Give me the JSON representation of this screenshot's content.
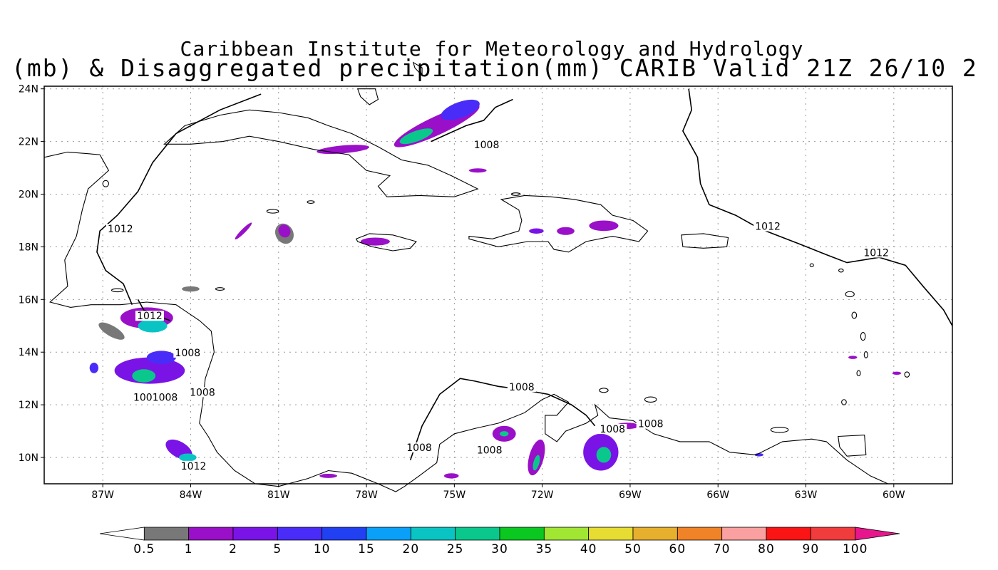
{
  "title_line1": "Caribbean Institute for Meteorology and Hydrology",
  "title_line2": "(mb) & Disaggregated precipitation(mm) CARIB Valid 21Z 26/10 2",
  "lat_labels": [
    "24N",
    "22N",
    "20N",
    "18N",
    "16N",
    "14N",
    "12N",
    "10N"
  ],
  "lon_labels": [
    "87W",
    "84W",
    "81W",
    "78W",
    "75W",
    "72W",
    "69W",
    "66W",
    "63W",
    "60W"
  ],
  "isobar_labels": [
    {
      "text": "1008",
      "lon": -73.9,
      "lat": 21.8
    },
    {
      "text": "1012",
      "lon": -86.4,
      "lat": 18.6
    },
    {
      "text": "1012",
      "lon": -64.3,
      "lat": 18.7
    },
    {
      "text": "1012",
      "lon": -60.6,
      "lat": 17.7
    },
    {
      "text": "1012",
      "lon": -85.4,
      "lat": 15.3
    },
    {
      "text": "1008",
      "lon": -84.1,
      "lat": 13.9
    },
    {
      "text": "1008",
      "lon": -83.6,
      "lat": 12.4
    },
    {
      "text": "1001008",
      "lon": -85.2,
      "lat": 12.2
    },
    {
      "text": "1008",
      "lon": -72.7,
      "lat": 12.6
    },
    {
      "text": "1008",
      "lon": -76.2,
      "lat": 10.3
    },
    {
      "text": "1008",
      "lon": -73.8,
      "lat": 10.2
    },
    {
      "text": "1008",
      "lon": -69.6,
      "lat": 11.0
    },
    {
      "text": "1008",
      "lon": -68.3,
      "lat": 11.2
    },
    {
      "text": "1012",
      "lon": -83.9,
      "lat": 9.6
    }
  ],
  "colorbar": {
    "labels": [
      "0.5",
      "1",
      "2",
      "5",
      "10",
      "15",
      "20",
      "25",
      "30",
      "35",
      "40",
      "50",
      "60",
      "70",
      "80",
      "90",
      "100"
    ],
    "colors": [
      "#ffffff",
      "#787878",
      "#9a10c8",
      "#7a14e6",
      "#4a2cf8",
      "#2040f2",
      "#0aa0f8",
      "#0ac4c4",
      "#0ac88c",
      "#0ac820",
      "#a0e632",
      "#e6dc32",
      "#e6af2d",
      "#f08228",
      "#faa0a0",
      "#fa1414",
      "#f03c3c",
      "#e8168c"
    ]
  },
  "precip_areas": [
    {
      "lon": -75.6,
      "lat": 22.6,
      "rx": 1.6,
      "ry": 0.35,
      "rot": -25,
      "color": "#9a10c8"
    },
    {
      "lon": -74.8,
      "lat": 23.2,
      "rx": 0.7,
      "ry": 0.3,
      "rot": -20,
      "color": "#4a2cf8"
    },
    {
      "lon": -76.3,
      "lat": 22.2,
      "rx": 0.6,
      "ry": 0.2,
      "rot": -20,
      "color": "#0ac88c"
    },
    {
      "lon": -78.8,
      "lat": 21.7,
      "rx": 0.9,
      "ry": 0.15,
      "rot": -5,
      "color": "#9a10c8"
    },
    {
      "lon": -80.8,
      "lat": 18.5,
      "rx": 0.3,
      "ry": 0.4,
      "rot": -30,
      "color": "#787878"
    },
    {
      "lon": -80.8,
      "lat": 18.6,
      "rx": 0.2,
      "ry": 0.25,
      "rot": -30,
      "color": "#9a10c8"
    },
    {
      "lon": -84.0,
      "lat": 16.4,
      "rx": 0.3,
      "ry": 0.1,
      "rot": 0,
      "color": "#787878"
    },
    {
      "lon": -85.5,
      "lat": 15.3,
      "rx": 0.9,
      "ry": 0.4,
      "rot": 0,
      "color": "#9a10c8"
    },
    {
      "lon": -85.3,
      "lat": 15.0,
      "rx": 0.5,
      "ry": 0.25,
      "rot": 0,
      "color": "#0ac4c4"
    },
    {
      "lon": -86.7,
      "lat": 14.8,
      "rx": 0.5,
      "ry": 0.2,
      "rot": 30,
      "color": "#787878"
    },
    {
      "lon": -85.4,
      "lat": 13.3,
      "rx": 1.2,
      "ry": 0.5,
      "rot": 0,
      "color": "#7a14e6"
    },
    {
      "lon": -85.6,
      "lat": 13.1,
      "rx": 0.4,
      "ry": 0.25,
      "rot": 0,
      "color": "#0ac88c"
    },
    {
      "lon": -85.0,
      "lat": 13.8,
      "rx": 0.5,
      "ry": 0.25,
      "rot": 0,
      "color": "#4a2cf8"
    },
    {
      "lon": -87.3,
      "lat": 13.4,
      "rx": 0.15,
      "ry": 0.2,
      "rot": 0,
      "color": "#4a2cf8"
    },
    {
      "lon": -84.4,
      "lat": 10.3,
      "rx": 0.5,
      "ry": 0.3,
      "rot": 30,
      "color": "#7a14e6"
    },
    {
      "lon": -84.1,
      "lat": 10.0,
      "rx": 0.3,
      "ry": 0.15,
      "rot": 0,
      "color": "#0ac4c4"
    },
    {
      "lon": -77.7,
      "lat": 18.2,
      "rx": 0.5,
      "ry": 0.15,
      "rot": 0,
      "color": "#9a10c8"
    },
    {
      "lon": -69.9,
      "lat": 18.8,
      "rx": 0.5,
      "ry": 0.2,
      "rot": 0,
      "color": "#9a10c8"
    },
    {
      "lon": -71.2,
      "lat": 18.6,
      "rx": 0.3,
      "ry": 0.15,
      "rot": 0,
      "color": "#9a10c8"
    },
    {
      "lon": -72.2,
      "lat": 18.6,
      "rx": 0.25,
      "ry": 0.1,
      "rot": 0,
      "color": "#7a14e6"
    },
    {
      "lon": -73.3,
      "lat": 10.9,
      "rx": 0.4,
      "ry": 0.3,
      "rot": 0,
      "color": "#9a10c8"
    },
    {
      "lon": -73.3,
      "lat": 10.9,
      "rx": 0.15,
      "ry": 0.1,
      "rot": 0,
      "color": "#0ac88c"
    },
    {
      "lon": -72.2,
      "lat": 10.0,
      "rx": 0.25,
      "ry": 0.7,
      "rot": 15,
      "color": "#9a10c8"
    },
    {
      "lon": -72.2,
      "lat": 9.8,
      "rx": 0.1,
      "ry": 0.3,
      "rot": 15,
      "color": "#0ac88c"
    },
    {
      "lon": -70.0,
      "lat": 10.2,
      "rx": 0.6,
      "ry": 0.7,
      "rot": 0,
      "color": "#7a14e6"
    },
    {
      "lon": -69.9,
      "lat": 10.1,
      "rx": 0.25,
      "ry": 0.3,
      "rot": 0,
      "color": "#0ac88c"
    },
    {
      "lon": -69.1,
      "lat": 11.2,
      "rx": 0.4,
      "ry": 0.12,
      "rot": 0,
      "color": "#9a10c8"
    },
    {
      "lon": -75.1,
      "lat": 9.3,
      "rx": 0.25,
      "ry": 0.1,
      "rot": 0,
      "color": "#9a10c8"
    },
    {
      "lon": -79.3,
      "lat": 9.3,
      "rx": 0.3,
      "ry": 0.08,
      "rot": 0,
      "color": "#9a10c8"
    },
    {
      "lon": -74.2,
      "lat": 20.9,
      "rx": 0.3,
      "ry": 0.08,
      "rot": 0,
      "color": "#9a10c8"
    },
    {
      "lon": -61.4,
      "lat": 13.8,
      "rx": 0.15,
      "ry": 0.06,
      "rot": 0,
      "color": "#9a10c8"
    },
    {
      "lon": -59.9,
      "lat": 13.2,
      "rx": 0.15,
      "ry": 0.06,
      "rot": 0,
      "color": "#9a10c8"
    },
    {
      "lon": -64.6,
      "lat": 10.1,
      "rx": 0.15,
      "ry": 0.06,
      "rot": 0,
      "color": "#4a2cf8"
    },
    {
      "lon": -82.2,
      "lat": 18.6,
      "rx": 0.4,
      "ry": 0.08,
      "rot": -45,
      "color": "#9a10c8"
    }
  ]
}
